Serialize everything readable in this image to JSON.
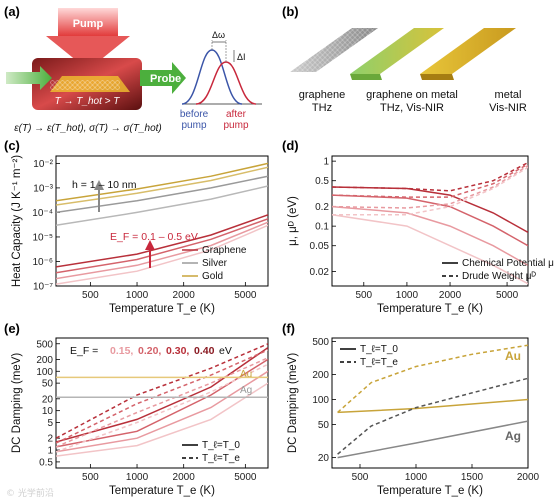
{
  "panels": {
    "a": {
      "label": "(a)",
      "pump": "Pump",
      "probe": "Probe",
      "temp_relation": "T → T_hot > T",
      "equation": "ε(T) → ε(T_hot),  σ(T) → σ(T_hot)",
      "delta_omega": "Δω",
      "delta_i": "ΔI",
      "before": "before",
      "after": "after",
      "pump_word": "pump",
      "colors": {
        "before": "#3b55a8",
        "after": "#c8283c",
        "pump": "#e23b3b",
        "probe": "#4caf3d"
      }
    },
    "b": {
      "label": "(b)",
      "materials": [
        {
          "name": "graphene",
          "range": "THz"
        },
        {
          "name": "graphene on metal",
          "range": "THz, Vis-NIR"
        },
        {
          "name": "metal",
          "range": "Vis-NIR"
        }
      ]
    },
    "c": {
      "label": "(c)",
      "annot_h": "h = 1 – 10 nm",
      "annot_ef": "E_F = 0.1 – 0.5 eV"
    },
    "d": {
      "label": "(d)"
    },
    "e": {
      "label": "(e)",
      "ef_prefix": "E_F = ",
      "ef_values": [
        "0.15,",
        "0.20,",
        "0.30,",
        "0.40"
      ],
      "ef_unit": "eV",
      "au": "Au",
      "ag": "Ag"
    },
    "f": {
      "label": "(f)",
      "au": "Au",
      "ag": "Ag"
    }
  },
  "watermark": "© 光学前沿",
  "chart_data": [
    {
      "id": "c",
      "type": "line",
      "ylabel": "Heat Capacity (J K⁻¹ m⁻²)",
      "xlabel": "Temperature T_e (K)",
      "xscale": "log",
      "yscale": "log",
      "xlim": [
        300,
        7000
      ],
      "ylim": [
        1e-07,
        0.02
      ],
      "xticks": [
        500,
        1000,
        2000,
        5000
      ],
      "yticks": [
        1e-07,
        1e-06,
        1e-05,
        0.0001,
        0.001,
        0.01
      ],
      "yticklabels": [
        "10⁻⁷",
        "10⁻⁶",
        "10⁻⁵",
        "10⁻⁴",
        "10⁻³",
        "10⁻²"
      ],
      "legend": {
        "position": "bottom-right",
        "entries": [
          "Graphene",
          "Silver",
          "Gold"
        ]
      },
      "series": [
        {
          "name": "Graphene",
          "color": "#b8303a",
          "points": [
            [
              300,
              6e-07
            ],
            [
              1000,
              2e-06
            ],
            [
              3000,
              1.2e-05
            ],
            [
              7000,
              8e-05
            ]
          ]
        },
        {
          "color": "#d4636b",
          "points": [
            [
              300,
              3.5e-07
            ],
            [
              1000,
              1.2e-06
            ],
            [
              3000,
              8e-06
            ],
            [
              7000,
              5.5e-05
            ]
          ]
        },
        {
          "color": "#e89aa0",
          "points": [
            [
              300,
              2e-07
            ],
            [
              1000,
              7e-07
            ],
            [
              3000,
              4.5e-06
            ],
            [
              7000,
              4e-05
            ]
          ]
        },
        {
          "color": "#f2c4c7",
          "points": [
            [
              300,
              1.2e-07
            ],
            [
              1000,
              4e-07
            ],
            [
              3000,
              3e-06
            ],
            [
              7000,
              3e-05
            ]
          ]
        },
        {
          "name": "Silver",
          "color": "#9a9a9a",
          "points": [
            [
              300,
              0.0001
            ],
            [
              1000,
              0.0003
            ],
            [
              3000,
              0.001
            ],
            [
              7000,
              0.003
            ]
          ]
        },
        {
          "color": "#b8b8b8",
          "points": [
            [
              300,
              3e-05
            ],
            [
              1000,
              0.0001
            ],
            [
              3000,
              0.00035
            ],
            [
              7000,
              0.0012
            ]
          ]
        },
        {
          "name": "Gold",
          "color": "#c8a43a",
          "points": [
            [
              300,
              0.0003
            ],
            [
              1000,
              0.0009
            ],
            [
              3000,
              0.003
            ],
            [
              7000,
              0.01
            ]
          ]
        },
        {
          "color": "#d8bd6a",
          "points": [
            [
              300,
              0.0002
            ],
            [
              1000,
              0.0006
            ],
            [
              3000,
              0.002
            ],
            [
              7000,
              0.007
            ]
          ]
        }
      ]
    },
    {
      "id": "d",
      "type": "line",
      "ylabel": "μ, μᴰ (eV)",
      "xlabel": "Temperature T_e (K)",
      "xscale": "log",
      "yscale": "log",
      "xlim": [
        300,
        7000
      ],
      "ylim": [
        0.012,
        1.2
      ],
      "xticks": [
        500,
        1000,
        2000,
        5000
      ],
      "yticks": [
        0.02,
        0.05,
        0.1,
        0.2,
        0.5,
        1
      ],
      "legend": {
        "position": "bottom-right",
        "entries": [
          "Chemical Potential μ",
          "Drude Weight μᴰ"
        ]
      },
      "series": [
        {
          "color": "#b8303a",
          "style": "solid",
          "points": [
            [
              300,
              0.4
            ],
            [
              1000,
              0.38
            ],
            [
              2000,
              0.3
            ],
            [
              4000,
              0.16
            ],
            [
              7000,
              0.08
            ]
          ]
        },
        {
          "color": "#b8303a",
          "style": "dashed",
          "points": [
            [
              300,
              0.4
            ],
            [
              1000,
              0.38
            ],
            [
              2000,
              0.35
            ],
            [
              4000,
              0.5
            ],
            [
              7000,
              0.95
            ]
          ]
        },
        {
          "color": "#d4636b",
          "style": "solid",
          "points": [
            [
              300,
              0.3
            ],
            [
              1000,
              0.27
            ],
            [
              2000,
              0.2
            ],
            [
              4000,
              0.1
            ],
            [
              7000,
              0.05
            ]
          ]
        },
        {
          "color": "#d4636b",
          "style": "dashed",
          "points": [
            [
              300,
              0.3
            ],
            [
              1000,
              0.28
            ],
            [
              2000,
              0.28
            ],
            [
              4000,
              0.45
            ],
            [
              7000,
              0.9
            ]
          ]
        },
        {
          "color": "#e89aa0",
          "style": "solid",
          "points": [
            [
              300,
              0.2
            ],
            [
              1000,
              0.16
            ],
            [
              2000,
              0.1
            ],
            [
              4000,
              0.05
            ],
            [
              7000,
              0.025
            ]
          ]
        },
        {
          "color": "#e89aa0",
          "style": "dashed",
          "points": [
            [
              300,
              0.2
            ],
            [
              1000,
              0.19
            ],
            [
              2000,
              0.22
            ],
            [
              4000,
              0.4
            ],
            [
              7000,
              0.85
            ]
          ]
        },
        {
          "color": "#f2c4c7",
          "style": "solid",
          "points": [
            [
              300,
              0.15
            ],
            [
              1000,
              0.1
            ],
            [
              2000,
              0.05
            ],
            [
              4000,
              0.025
            ],
            [
              7000,
              0.013
            ]
          ]
        },
        {
          "color": "#f2c4c7",
          "style": "dashed",
          "points": [
            [
              300,
              0.15
            ],
            [
              1000,
              0.15
            ],
            [
              2000,
              0.2
            ],
            [
              4000,
              0.38
            ],
            [
              7000,
              0.8
            ]
          ]
        }
      ]
    },
    {
      "id": "e",
      "type": "line",
      "ylabel": "DC Damping (meV)",
      "xlabel": "Temperature T_e (K)",
      "xscale": "log",
      "yscale": "log",
      "xlim": [
        300,
        7000
      ],
      "ylim": [
        0.35,
        700
      ],
      "xticks": [
        500,
        1000,
        2000,
        5000
      ],
      "yticks": [
        0.5,
        1,
        2,
        5,
        10,
        20,
        50,
        100,
        200,
        500
      ],
      "legend": {
        "position": "bottom-right",
        "entries": [
          "T_ℓ=T_0",
          "T_ℓ=T_e"
        ]
      },
      "series": [
        {
          "color": "#b8303a",
          "style": "solid",
          "points": [
            [
              300,
              1.6
            ],
            [
              1000,
              6
            ],
            [
              3000,
              40
            ],
            [
              7000,
              400
            ]
          ]
        },
        {
          "color": "#b8303a",
          "style": "dashed",
          "points": [
            [
              300,
              2
            ],
            [
              1000,
              25
            ],
            [
              3000,
              120
            ],
            [
              7000,
              500
            ]
          ]
        },
        {
          "color": "#d4636b",
          "style": "solid",
          "points": [
            [
              300,
              1.2
            ],
            [
              1000,
              3
            ],
            [
              3000,
              25
            ],
            [
              7000,
              200
            ]
          ]
        },
        {
          "color": "#d4636b",
          "style": "dashed",
          "points": [
            [
              300,
              1.5
            ],
            [
              1000,
              15
            ],
            [
              3000,
              80
            ],
            [
              7000,
              350
            ]
          ]
        },
        {
          "color": "#e89aa0",
          "style": "solid",
          "points": [
            [
              300,
              0.9
            ],
            [
              1000,
              2
            ],
            [
              3000,
              12
            ],
            [
              7000,
              100
            ]
          ]
        },
        {
          "color": "#e89aa0",
          "style": "dashed",
          "points": [
            [
              300,
              1.2
            ],
            [
              1000,
              9
            ],
            [
              3000,
              50
            ],
            [
              7000,
              220
            ]
          ]
        },
        {
          "color": "#f2c4c7",
          "style": "solid",
          "points": [
            [
              300,
              0.7
            ],
            [
              1000,
              1.3
            ],
            [
              3000,
              6
            ],
            [
              7000,
              50
            ]
          ]
        },
        {
          "color": "#f2c4c7",
          "style": "dashed",
          "points": [
            [
              300,
              0.9
            ],
            [
              1000,
              5
            ],
            [
              3000,
              30
            ],
            [
              7000,
              150
            ]
          ]
        },
        {
          "name": "Au",
          "color": "#e6c97a",
          "style": "solid",
          "points": [
            [
              300,
              70
            ],
            [
              7000,
              70
            ]
          ]
        },
        {
          "name": "Ag",
          "color": "#b5b5b5",
          "style": "solid",
          "points": [
            [
              300,
              22
            ],
            [
              7000,
              22
            ]
          ]
        }
      ]
    },
    {
      "id": "f",
      "type": "line",
      "ylabel": "DC Damping (meV)",
      "xlabel": "Temperature T_e (K)",
      "xscale": "linear",
      "yscale": "log",
      "xlim": [
        250,
        2000
      ],
      "ylim": [
        15,
        550
      ],
      "xticks": [
        500,
        1000,
        1500,
        2000
      ],
      "yticks": [
        20,
        50,
        100,
        200,
        500
      ],
      "legend": {
        "position": "top-left",
        "entries": [
          "T_ℓ=T_0",
          "T_ℓ=T_e"
        ]
      },
      "series": [
        {
          "name": "Au",
          "color": "#c8a43a",
          "style": "dashed",
          "points": [
            [
              300,
              70
            ],
            [
              600,
              160
            ],
            [
              1000,
              250
            ],
            [
              1500,
              350
            ],
            [
              2000,
              450
            ]
          ]
        },
        {
          "name": "Au",
          "color": "#c8a43a",
          "style": "solid",
          "points": [
            [
              300,
              70
            ],
            [
              1000,
              78
            ],
            [
              2000,
              100
            ]
          ]
        },
        {
          "name": "Ag",
          "color": "#555555",
          "style": "dashed",
          "points": [
            [
              300,
              22
            ],
            [
              600,
              48
            ],
            [
              1000,
              80
            ],
            [
              1500,
              120
            ],
            [
              2000,
              180
            ]
          ]
        },
        {
          "name": "Ag",
          "color": "#888888",
          "style": "solid",
          "points": [
            [
              300,
              20
            ],
            [
              1000,
              30
            ],
            [
              2000,
              55
            ]
          ]
        }
      ]
    }
  ]
}
